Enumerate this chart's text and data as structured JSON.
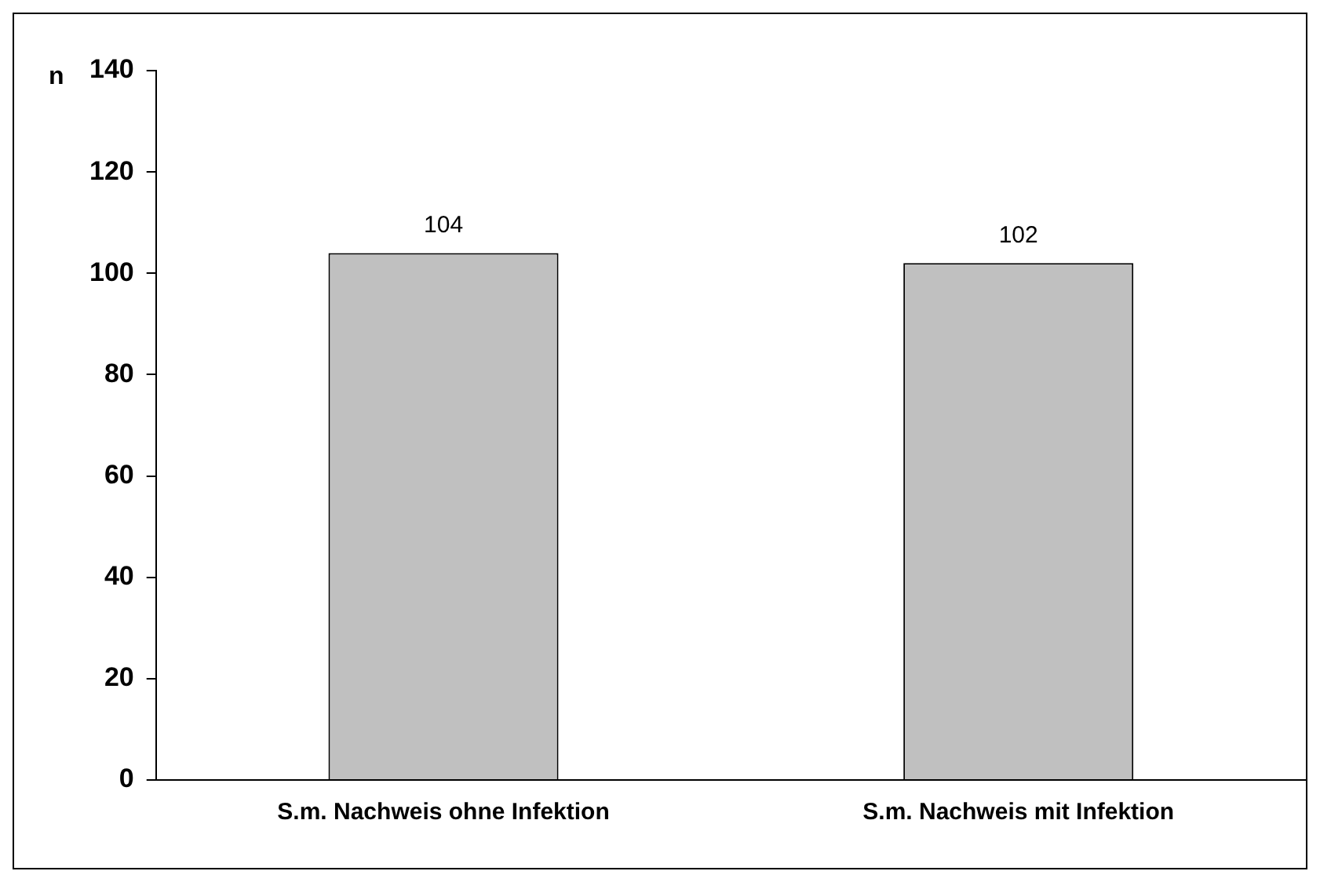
{
  "chart_data": {
    "type": "bar",
    "ylabel": "n",
    "categories": [
      "S.m. Nachweis ohne Infektion",
      "S.m. Nachweis mit Infektion"
    ],
    "values": [
      104,
      102
    ],
    "color": "#c0c0c0",
    "ylim": [
      0,
      140
    ],
    "yticks": [
      0,
      20,
      40,
      60,
      80,
      100,
      120,
      140
    ],
    "grid": false,
    "legend": false,
    "data_labels": true
  }
}
